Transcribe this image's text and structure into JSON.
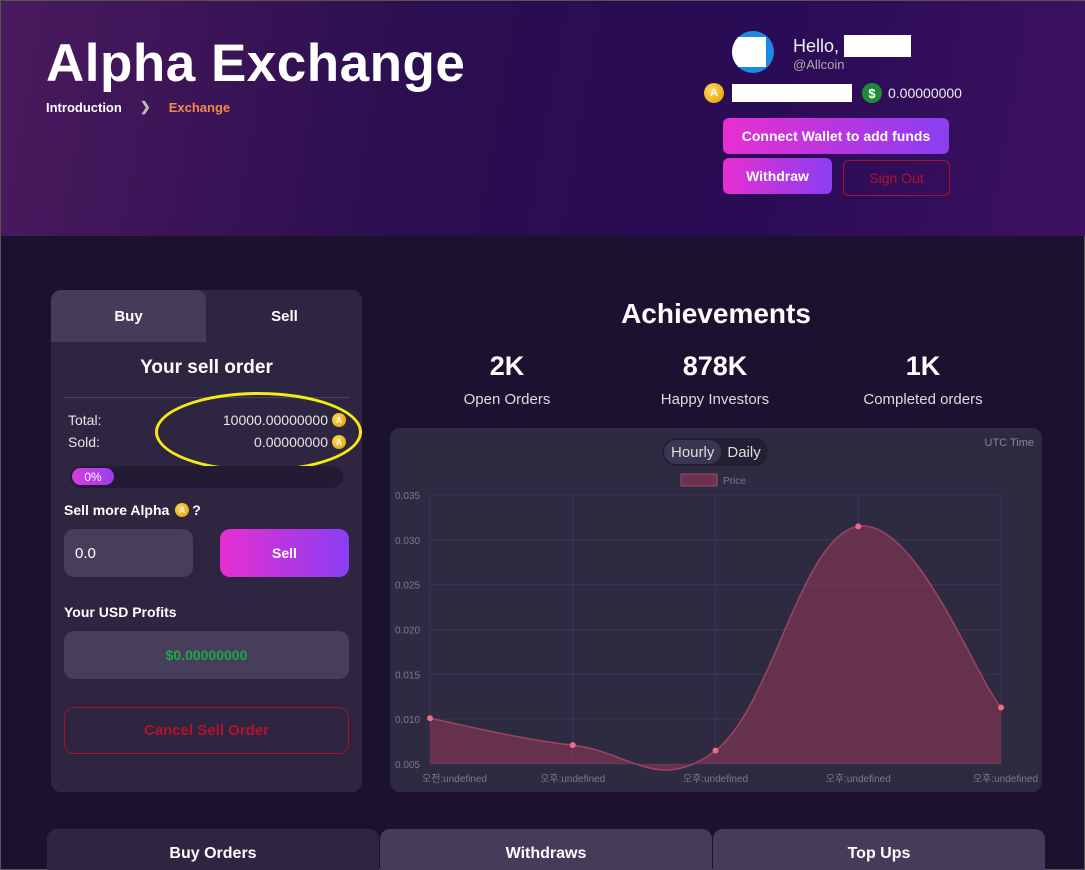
{
  "header": {
    "app_title": "Alpha Exchange",
    "breadcrumb": [
      {
        "label": "Introduction"
      },
      {
        "label": "Exchange"
      }
    ],
    "greeting": "Hello,",
    "handle": "@Allcoin",
    "usd_balance": "0.00000000",
    "connect_label": "Connect Wallet to add funds",
    "withdraw_label": "Withdraw",
    "signout_label": "Sign Out"
  },
  "order_panel": {
    "tabs": [
      {
        "label": "Buy"
      },
      {
        "label": "Sell"
      }
    ],
    "active_tab": "Sell",
    "title": "Your sell order",
    "total_label": "Total:",
    "total_value": "10000.00000000",
    "sold_label": "Sold:",
    "sold_value": "0.00000000",
    "progress_text": "0%",
    "progress_fraction": 0.0,
    "sell_more_label": "Sell more Alpha",
    "sell_more_suffix": "?",
    "amount_value": "0.0",
    "sell_button": "Sell",
    "profits_label": "Your USD Profits",
    "profits_value": "$0.00000000",
    "cancel_label": "Cancel Sell Order"
  },
  "achievements": {
    "title": "Achievements",
    "stats": [
      {
        "value": "2K",
        "label": "Open Orders"
      },
      {
        "value": "878K",
        "label": "Happy Investors"
      },
      {
        "value": "1K",
        "label": "Completed orders"
      }
    ]
  },
  "chart_panel": {
    "toggle": [
      {
        "label": "Hourly"
      },
      {
        "label": "Daily"
      }
    ],
    "active_toggle": "Hourly",
    "utc_label": "UTC Time"
  },
  "chart_data": {
    "type": "area",
    "categories": [
      "오전:undefined",
      "오후:undefined",
      "오후:undefined",
      "오후:undefined",
      "오후:undefined"
    ],
    "series": [
      {
        "name": "Price",
        "values": [
          0.0101,
          0.0071,
          0.0065,
          0.0315,
          0.0113
        ]
      }
    ],
    "yticks": [
      "0.035",
      "0.030",
      "0.025",
      "0.020",
      "0.015",
      "0.010",
      "0.005"
    ],
    "ylim": [
      0.005,
      0.035
    ],
    "grid": true,
    "legend": "top",
    "color": "#d9506e"
  },
  "bottom_tabs": [
    {
      "label": "Buy Orders"
    },
    {
      "label": "Withdraws"
    },
    {
      "label": "Top Ups"
    }
  ],
  "colors": {
    "accent_gradient_start": "#e62fd0",
    "accent_gradient_end": "#8a3ef2",
    "danger": "#b3122c",
    "profit": "#1fa84a",
    "breadcrumb_active": "#f08a4b"
  }
}
